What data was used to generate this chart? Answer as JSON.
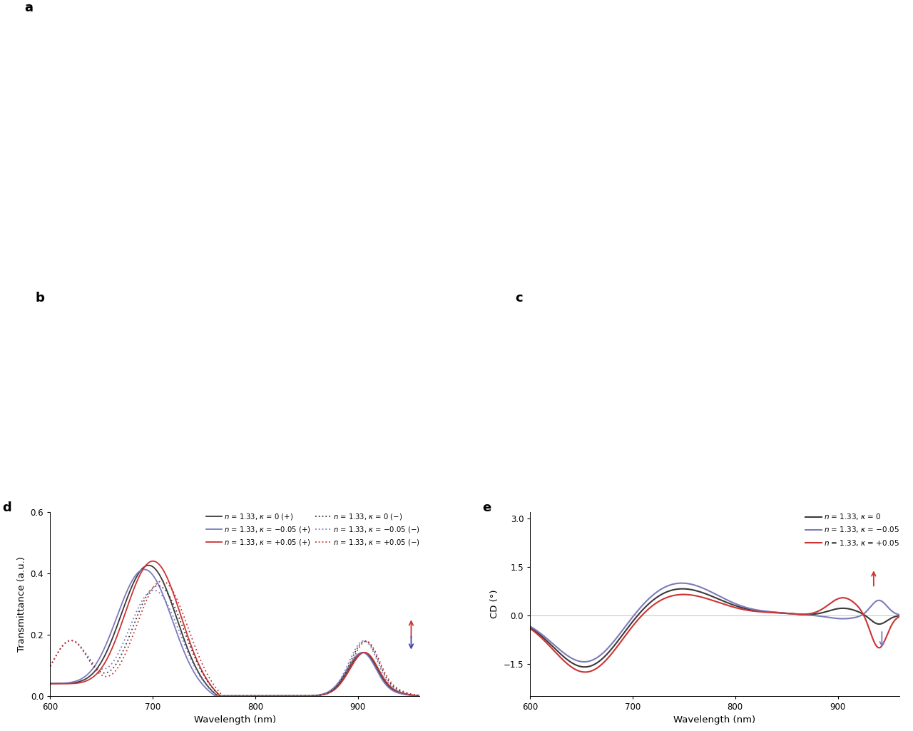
{
  "panel_d": {
    "xlabel": "Wavelength (nm)",
    "ylabel": "Transmittance (a.u.)",
    "xlim": [
      600,
      960
    ],
    "ylim": [
      0,
      0.6
    ],
    "yticks": [
      0.0,
      0.2,
      0.4,
      0.6
    ],
    "xticks": [
      600,
      700,
      800,
      900
    ],
    "colors": {
      "kappa0": "#3a3a3a",
      "kappa_neg": "#7b7bbb",
      "kappa_pos": "#cc3333"
    }
  },
  "panel_e": {
    "xlabel": "Wavelength (nm)",
    "ylabel": "CD (°)",
    "xlim": [
      600,
      960
    ],
    "ylim": [
      -2.5,
      3.2
    ],
    "yticks": [
      -1.5,
      0.0,
      1.5,
      3.0
    ],
    "xticks": [
      600,
      700,
      800,
      900
    ],
    "colors": {
      "kappa0": "#3a3a3a",
      "kappa_neg": "#7b7bbb",
      "kappa_pos": "#cc3333"
    }
  }
}
